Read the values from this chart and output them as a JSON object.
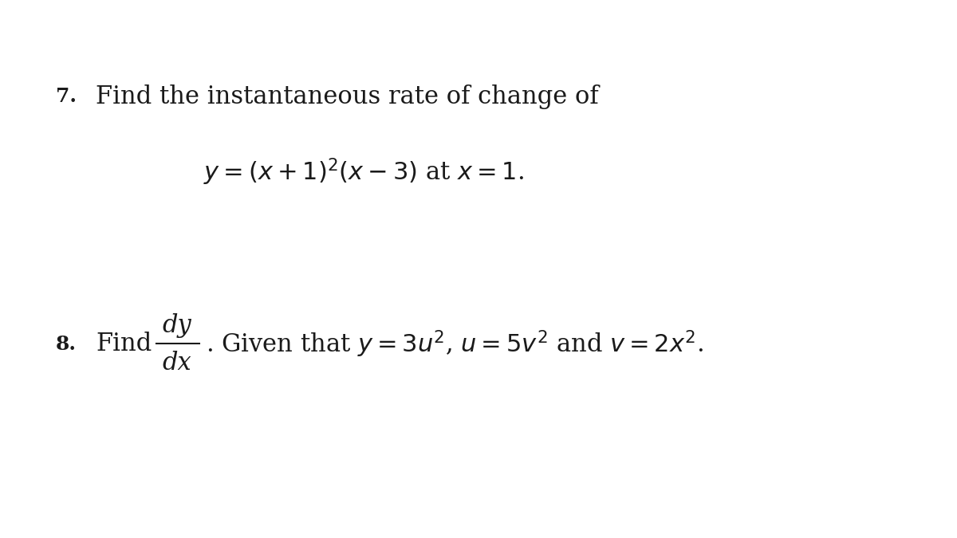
{
  "background_color": "#ffffff",
  "figsize": [
    12.0,
    6.75
  ],
  "dpi": 100,
  "problem7_number": "7.",
  "problem7_line1": "Find the instantaneous rate of change of",
  "problem7_line2": "$y = (x + 1)^2(x - 3)$ at $x = 1$.",
  "problem8_number": "8.",
  "problem8_prefix": "Find",
  "problem8_fraction_num": "dy",
  "problem8_fraction_den": "dx",
  "problem8_suffix": ". Given that $y = 3u^2$, $u = 5v^2$ and $v = 2x^2$.",
  "number_fontsize": 18,
  "text_fontsize": 22,
  "math_fontsize": 22,
  "text_color": "#1a1a1a",
  "font_family": "serif"
}
